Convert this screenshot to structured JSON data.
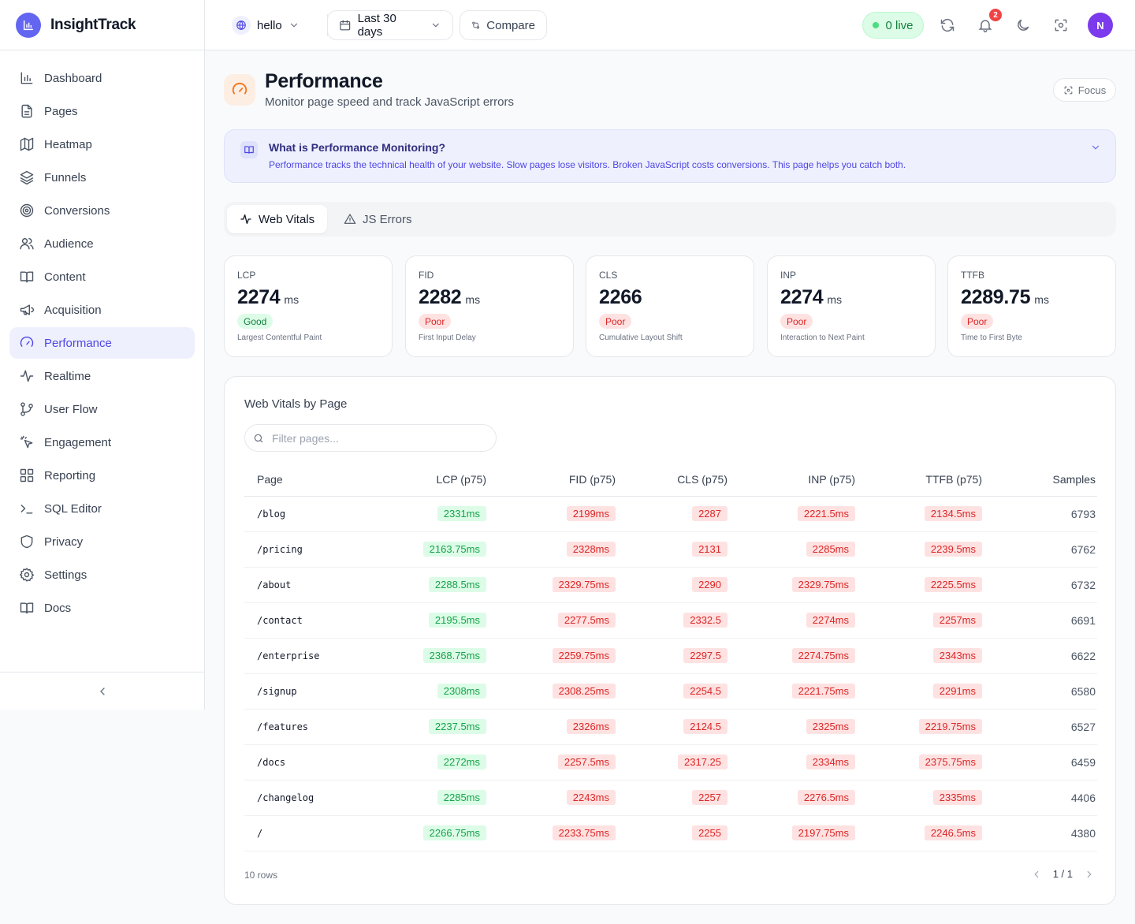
{
  "app": {
    "name": "InsightTrack"
  },
  "sidebar": {
    "items": [
      {
        "label": "Dashboard",
        "icon": "bar-chart-icon"
      },
      {
        "label": "Pages",
        "icon": "file-icon"
      },
      {
        "label": "Heatmap",
        "icon": "map-icon"
      },
      {
        "label": "Funnels",
        "icon": "layers-icon"
      },
      {
        "label": "Conversions",
        "icon": "target-icon"
      },
      {
        "label": "Audience",
        "icon": "users-icon"
      },
      {
        "label": "Content",
        "icon": "book-icon"
      },
      {
        "label": "Acquisition",
        "icon": "megaphone-icon"
      },
      {
        "label": "Performance",
        "icon": "gauge-icon",
        "active": true
      },
      {
        "label": "Realtime",
        "icon": "activity-icon"
      },
      {
        "label": "User Flow",
        "icon": "git-branch-icon"
      },
      {
        "label": "Engagement",
        "icon": "pointer-click-icon"
      },
      {
        "label": "Reporting",
        "icon": "grid-icon"
      },
      {
        "label": "SQL Editor",
        "icon": "terminal-icon"
      },
      {
        "label": "Privacy",
        "icon": "shield-icon"
      },
      {
        "label": "Settings",
        "icon": "gear-icon"
      },
      {
        "label": "Docs",
        "icon": "book-open-icon"
      }
    ]
  },
  "topbar": {
    "site": "hello",
    "date_range": "Last 30 days",
    "compare": "Compare",
    "live": "0 live",
    "notifications": "2",
    "avatar_initial": "N"
  },
  "page": {
    "title": "Performance",
    "subtitle": "Monitor page speed and track JavaScript errors",
    "focus": "Focus",
    "accent": "#f97316"
  },
  "info": {
    "title": "What is Performance Monitoring?",
    "body": "Performance tracks the technical health of your website. Slow pages lose visitors. Broken JavaScript costs conversions. This page helps you catch both."
  },
  "tabs": [
    {
      "label": "Web Vitals",
      "active": true
    },
    {
      "label": "JS Errors"
    }
  ],
  "metrics": [
    {
      "label": "LCP",
      "value": "2274",
      "unit": "ms",
      "status": "Good",
      "desc": "Largest Contentful Paint"
    },
    {
      "label": "FID",
      "value": "2282",
      "unit": "ms",
      "status": "Poor",
      "desc": "First Input Delay"
    },
    {
      "label": "CLS",
      "value": "2266",
      "unit": "",
      "status": "Poor",
      "desc": "Cumulative Layout Shift"
    },
    {
      "label": "INP",
      "value": "2274",
      "unit": "ms",
      "status": "Poor",
      "desc": "Interaction to Next Paint"
    },
    {
      "label": "TTFB",
      "value": "2289.75",
      "unit": "ms",
      "status": "Poor",
      "desc": "Time to First Byte"
    }
  ],
  "table": {
    "title": "Web Vitals by Page",
    "filter_placeholder": "Filter pages...",
    "columns": [
      "Page",
      "LCP (p75)",
      "FID (p75)",
      "CLS (p75)",
      "INP (p75)",
      "TTFB (p75)",
      "Samples"
    ],
    "rows": [
      {
        "page": "/blog",
        "lcp": "2331ms",
        "fid": "2199ms",
        "cls": "2287",
        "inp": "2221.5ms",
        "ttfb": "2134.5ms",
        "samples": "6793"
      },
      {
        "page": "/pricing",
        "lcp": "2163.75ms",
        "fid": "2328ms",
        "cls": "2131",
        "inp": "2285ms",
        "ttfb": "2239.5ms",
        "samples": "6762"
      },
      {
        "page": "/about",
        "lcp": "2288.5ms",
        "fid": "2329.75ms",
        "cls": "2290",
        "inp": "2329.75ms",
        "ttfb": "2225.5ms",
        "samples": "6732"
      },
      {
        "page": "/contact",
        "lcp": "2195.5ms",
        "fid": "2277.5ms",
        "cls": "2332.5",
        "inp": "2274ms",
        "ttfb": "2257ms",
        "samples": "6691"
      },
      {
        "page": "/enterprise",
        "lcp": "2368.75ms",
        "fid": "2259.75ms",
        "cls": "2297.5",
        "inp": "2274.75ms",
        "ttfb": "2343ms",
        "samples": "6622"
      },
      {
        "page": "/signup",
        "lcp": "2308ms",
        "fid": "2308.25ms",
        "cls": "2254.5",
        "inp": "2221.75ms",
        "ttfb": "2291ms",
        "samples": "6580"
      },
      {
        "page": "/features",
        "lcp": "2237.5ms",
        "fid": "2326ms",
        "cls": "2124.5",
        "inp": "2325ms",
        "ttfb": "2219.75ms",
        "samples": "6527"
      },
      {
        "page": "/docs",
        "lcp": "2272ms",
        "fid": "2257.5ms",
        "cls": "2317.25",
        "inp": "2334ms",
        "ttfb": "2375.75ms",
        "samples": "6459"
      },
      {
        "page": "/changelog",
        "lcp": "2285ms",
        "fid": "2243ms",
        "cls": "2257",
        "inp": "2276.5ms",
        "ttfb": "2335ms",
        "samples": "4406"
      },
      {
        "page": "/",
        "lcp": "2266.75ms",
        "fid": "2233.75ms",
        "cls": "2255",
        "inp": "2197.75ms",
        "ttfb": "2246.5ms",
        "samples": "4380"
      }
    ],
    "row_count": "10 rows",
    "page_indicator": "1 / 1"
  }
}
